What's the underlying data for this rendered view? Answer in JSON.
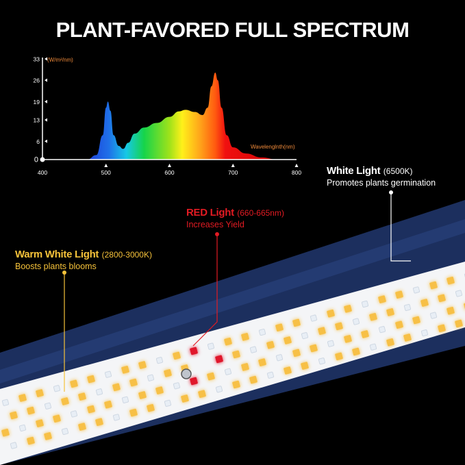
{
  "title": "PLANT-FAVORED FULL SPECTRUM",
  "chart_data": {
    "type": "area",
    "title": "",
    "xlabel": "Wavelenglnth(nm)",
    "ylabel": "(W/m²/nm)",
    "xlim": [
      400,
      800
    ],
    "ylim": [
      0,
      33
    ],
    "x_ticks": [
      "400",
      "500",
      "600",
      "700",
      "800"
    ],
    "y_ticks": [
      "0",
      "6",
      "13",
      "19",
      "26",
      "33"
    ],
    "grid": false,
    "x": [
      470,
      485,
      495,
      500,
      503,
      507,
      512,
      520,
      527,
      535,
      545,
      560,
      580,
      600,
      615,
      625,
      640,
      652,
      660,
      666,
      672,
      676,
      682,
      690,
      700,
      720,
      745,
      770
    ],
    "y": [
      0,
      1.5,
      8,
      17,
      19,
      16,
      8,
      4.5,
      3.5,
      5.5,
      8.5,
      10.5,
      12,
      14,
      15.8,
      16.3,
      15.6,
      14.6,
      17,
      24,
      28.5,
      26,
      17,
      8,
      4,
      2,
      0.7,
      0
    ]
  },
  "callouts": {
    "white": {
      "head": "White Light",
      "spec": "(6500K)",
      "desc": "Promotes plants germination",
      "color": "#ffffff"
    },
    "red": {
      "head": "RED Light",
      "spec": "(660-665nm)",
      "desc": "Increases Yield",
      "color": "#e31b23"
    },
    "warm": {
      "head": "Warm White Light",
      "spec": "(2800-3000K)",
      "desc": "Boosts plants blooms",
      "color": "#f6c23a"
    }
  },
  "colors": {
    "housing": "#1c2f5e",
    "panel": "#f4f5f7",
    "warm_led": "#f7c046",
    "white_led": "#e8eef5",
    "red_led": "#e0162b",
    "axis_label": "#f08a3a"
  }
}
